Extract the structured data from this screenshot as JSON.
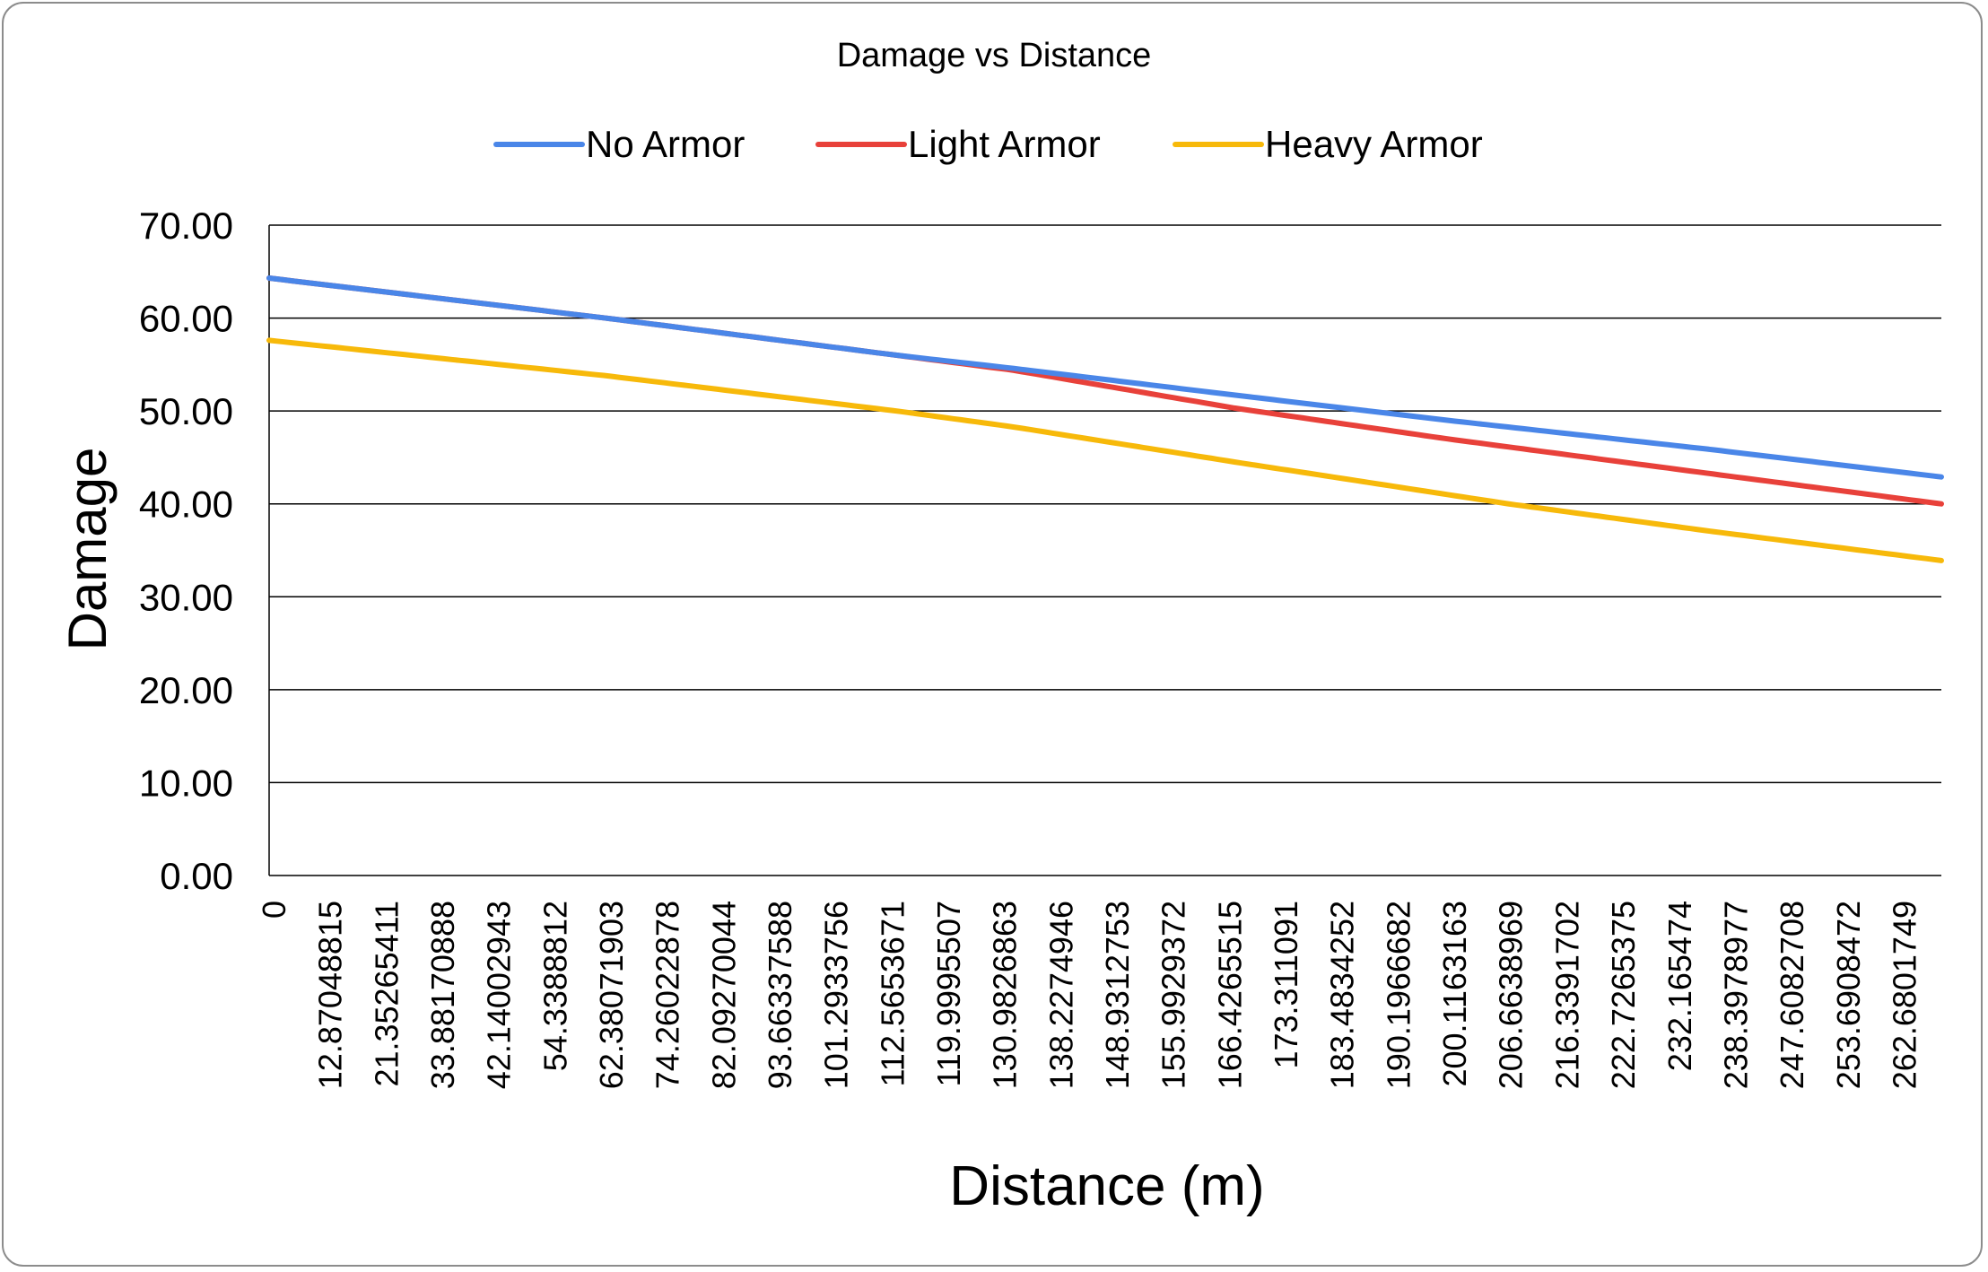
{
  "chart_data": {
    "type": "line",
    "title": "Damage vs Distance",
    "xlabel": "Distance (m)",
    "ylabel": "Damage",
    "ylim": [
      0,
      70
    ],
    "xlim": [
      0,
      270
    ],
    "y_ticks": [
      "0.00",
      "10.00",
      "20.00",
      "30.00",
      "40.00",
      "50.00",
      "60.00",
      "70.00"
    ],
    "x_tick_labels": [
      "0",
      "12.87048815",
      "21.35265411",
      "33.88170888",
      "42.14002943",
      "54.3388812",
      "62.38071903",
      "74.26022878",
      "82.09270044",
      "93.66337588",
      "101.2933756",
      "112.5653671",
      "119.9995507",
      "130.9826863",
      "138.2274946",
      "148.9312753",
      "155.9929372",
      "166.4265515",
      "173.311091",
      "183.4834252",
      "190.1966682",
      "200.1163163",
      "206.6638969",
      "216.3391702",
      "222.7265375",
      "232.165474",
      "238.3978977",
      "247.6082708",
      "253.6908472",
      "262.6801749"
    ],
    "legend_position": "top",
    "grid": true,
    "series": [
      {
        "name": "No Armor",
        "color": "#4a86e8",
        "x": [
          0,
          54.34,
          101.29,
          119.99,
          155.99,
          190.2,
          232.17,
          270
        ],
        "y": [
          64.3,
          60.0,
          56.0,
          54.6,
          51.7,
          49.0,
          45.9,
          42.9
        ]
      },
      {
        "name": "Light Armor",
        "color": "#e8413a",
        "x": [
          0,
          54.34,
          101.29,
          119.99,
          155.99,
          190.2,
          232.17,
          270
        ],
        "y": [
          64.3,
          60.0,
          56.0,
          54.4,
          50.3,
          47.0,
          43.3,
          40.0
        ]
      },
      {
        "name": "Heavy Armor",
        "color": "#f7b90a",
        "x": [
          0,
          54.34,
          101.29,
          119.99,
          155.99,
          200.12,
          232.17,
          270
        ],
        "y": [
          57.6,
          53.8,
          50.0,
          48.3,
          44.5,
          40.0,
          37.1,
          33.9
        ]
      }
    ]
  }
}
